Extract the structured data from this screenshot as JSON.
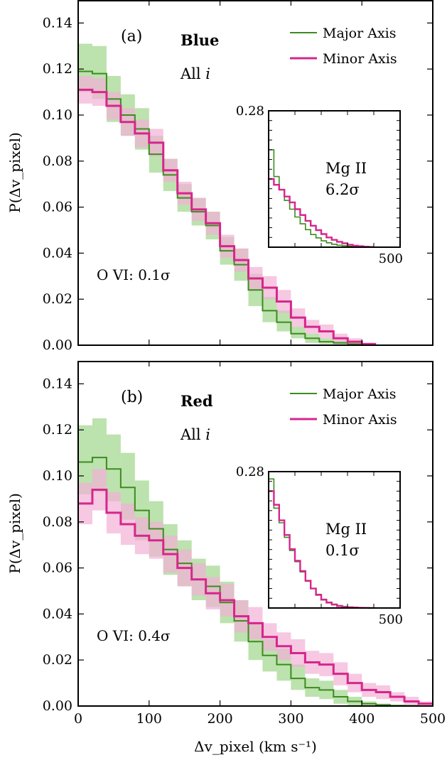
{
  "colors": {
    "major": "#3d8c1f",
    "minor": "#d6268c",
    "major_fill": "#9fd68c",
    "minor_fill": "#f2b0d6"
  },
  "chart_data": [
    {
      "type": "line",
      "step": true,
      "panel_label": "(a)",
      "sample_label": "Blue",
      "incl_label_prefix": "All ",
      "incl_label_var": "i",
      "ion_label": "O VI: 0.1σ",
      "ylabel": "P(Δv_pixel)",
      "xlim": [
        0,
        500
      ],
      "ylim": [
        0,
        0.15
      ],
      "yticks": [
        "0.00",
        "0.02",
        "0.04",
        "0.06",
        "0.08",
        "0.10",
        "0.12",
        "0.14"
      ],
      "x_edges": [
        0,
        20,
        40,
        60,
        80,
        100,
        120,
        140,
        160,
        180,
        200,
        220,
        240,
        260,
        280,
        300,
        320,
        340,
        360,
        380,
        400,
        420
      ],
      "series": [
        {
          "name": "Major Axis",
          "values": [
            0.119,
            0.118,
            0.107,
            0.1,
            0.094,
            0.083,
            0.074,
            0.064,
            0.058,
            0.052,
            0.041,
            0.035,
            0.024,
            0.015,
            0.01,
            0.005,
            0.003,
            0.0015,
            0.001,
            0.0005,
            0.0002
          ],
          "lower": [
            0.11,
            0.107,
            0.097,
            0.091,
            0.085,
            0.075,
            0.067,
            0.058,
            0.052,
            0.046,
            0.035,
            0.028,
            0.017,
            0.01,
            0.006,
            0.003,
            0.001,
            0.0005,
            0.0002,
            0.0,
            0.0
          ],
          "upper": [
            0.131,
            0.13,
            0.117,
            0.109,
            0.103,
            0.091,
            0.081,
            0.07,
            0.064,
            0.058,
            0.047,
            0.042,
            0.031,
            0.021,
            0.015,
            0.008,
            0.005,
            0.003,
            0.002,
            0.001,
            0.0005
          ]
        },
        {
          "name": "Minor Axis",
          "values": [
            0.111,
            0.11,
            0.104,
            0.097,
            0.092,
            0.088,
            0.076,
            0.066,
            0.059,
            0.053,
            0.043,
            0.037,
            0.029,
            0.025,
            0.019,
            0.012,
            0.008,
            0.006,
            0.003,
            0.0015,
            0.0005
          ],
          "lower": [
            0.105,
            0.104,
            0.098,
            0.091,
            0.086,
            0.082,
            0.071,
            0.061,
            0.054,
            0.048,
            0.038,
            0.032,
            0.024,
            0.02,
            0.014,
            0.008,
            0.005,
            0.003,
            0.001,
            0.0005,
            0.0
          ],
          "upper": [
            0.117,
            0.116,
            0.11,
            0.103,
            0.098,
            0.094,
            0.081,
            0.071,
            0.064,
            0.058,
            0.048,
            0.042,
            0.034,
            0.03,
            0.024,
            0.016,
            0.011,
            0.009,
            0.005,
            0.003,
            0.001
          ]
        }
      ],
      "legend": [
        "Major Axis",
        "Minor Axis"
      ],
      "legend_position": "top-right",
      "inset": {
        "ion": "Mg II",
        "sigma": "6.2σ",
        "ymax_label": "0.28",
        "xmax_label": "500",
        "xlim": [
          0,
          500
        ],
        "ylim": [
          0,
          0.28
        ],
        "x_edges": [
          0,
          20,
          40,
          60,
          80,
          100,
          120,
          140,
          160,
          180,
          200,
          220,
          240,
          260,
          280,
          300,
          320,
          340,
          360,
          380,
          400
        ],
        "series": [
          {
            "name": "Major Axis",
            "values": [
              0.2,
              0.145,
              0.118,
              0.096,
              0.078,
              0.062,
              0.048,
              0.036,
              0.026,
              0.019,
              0.013,
              0.009,
              0.006,
              0.004,
              0.003,
              0.002,
              0.001,
              0.0005,
              0.0003,
              0.0001
            ]
          },
          {
            "name": "Minor Axis",
            "values": [
              0.14,
              0.128,
              0.118,
              0.104,
              0.092,
              0.078,
              0.066,
              0.054,
              0.044,
              0.035,
              0.027,
              0.02,
              0.015,
              0.011,
              0.008,
              0.005,
              0.003,
              0.002,
              0.001,
              0.0005
            ]
          }
        ]
      }
    },
    {
      "type": "line",
      "step": true,
      "panel_label": "(b)",
      "sample_label": "Red",
      "incl_label_prefix": "All ",
      "incl_label_var": "i",
      "ion_label": "O VI: 0.4σ",
      "xlabel": "Δv_pixel (km s⁻¹)",
      "ylabel": "P(Δv_pixel)",
      "xlim": [
        0,
        500
      ],
      "ylim": [
        0,
        0.15
      ],
      "xticks": [
        "0",
        "100",
        "200",
        "300",
        "400",
        "500"
      ],
      "yticks": [
        "0.00",
        "0.02",
        "0.04",
        "0.06",
        "0.08",
        "0.10",
        "0.12",
        "0.14"
      ],
      "x_edges": [
        0,
        20,
        40,
        60,
        80,
        100,
        120,
        140,
        160,
        180,
        200,
        220,
        240,
        260,
        280,
        300,
        320,
        340,
        360,
        380,
        400,
        420,
        440,
        460,
        480,
        500
      ],
      "series": [
        {
          "name": "Major Axis",
          "values": [
            0.106,
            0.108,
            0.103,
            0.095,
            0.085,
            0.077,
            0.068,
            0.062,
            0.055,
            0.052,
            0.045,
            0.037,
            0.028,
            0.022,
            0.018,
            0.012,
            0.008,
            0.007,
            0.004,
            0.002,
            0.001,
            0.0005,
            0.0002,
            0.0001,
            0.0
          ],
          "lower": [
            0.092,
            0.093,
            0.089,
            0.081,
            0.072,
            0.065,
            0.057,
            0.052,
            0.046,
            0.043,
            0.036,
            0.028,
            0.02,
            0.015,
            0.011,
            0.007,
            0.004,
            0.003,
            0.001,
            0.0,
            0.0,
            0.0,
            0.0,
            0.0,
            0.0
          ],
          "upper": [
            0.122,
            0.125,
            0.118,
            0.11,
            0.098,
            0.089,
            0.079,
            0.072,
            0.064,
            0.061,
            0.054,
            0.046,
            0.036,
            0.029,
            0.025,
            0.018,
            0.012,
            0.011,
            0.007,
            0.004,
            0.002,
            0.001,
            0.0005,
            0.0002,
            0.0001
          ]
        },
        {
          "name": "Minor Axis",
          "values": [
            0.088,
            0.094,
            0.084,
            0.079,
            0.074,
            0.072,
            0.066,
            0.06,
            0.055,
            0.049,
            0.046,
            0.039,
            0.036,
            0.03,
            0.026,
            0.023,
            0.019,
            0.018,
            0.014,
            0.01,
            0.007,
            0.006,
            0.004,
            0.002,
            0.001
          ],
          "lower": [
            0.079,
            0.085,
            0.075,
            0.07,
            0.066,
            0.064,
            0.058,
            0.052,
            0.048,
            0.042,
            0.039,
            0.032,
            0.029,
            0.024,
            0.02,
            0.017,
            0.014,
            0.013,
            0.009,
            0.006,
            0.004,
            0.003,
            0.002,
            0.0005,
            0.0
          ],
          "upper": [
            0.097,
            0.103,
            0.093,
            0.088,
            0.082,
            0.08,
            0.074,
            0.068,
            0.062,
            0.056,
            0.053,
            0.046,
            0.043,
            0.036,
            0.032,
            0.029,
            0.024,
            0.023,
            0.019,
            0.014,
            0.01,
            0.009,
            0.006,
            0.004,
            0.002
          ]
        }
      ],
      "legend": [
        "Major Axis",
        "Minor Axis"
      ],
      "legend_position": "top-right",
      "inset": {
        "ion": "Mg II",
        "sigma": "0.1σ",
        "ymax_label": "0.28",
        "xmax_label": "500",
        "xlim": [
          0,
          500
        ],
        "ylim": [
          0,
          0.28
        ],
        "x_edges": [
          0,
          20,
          40,
          60,
          80,
          100,
          120,
          140,
          160,
          180,
          200,
          220,
          240,
          260,
          280,
          300,
          320,
          340,
          360,
          380,
          400
        ],
        "series": [
          {
            "name": "Major Axis",
            "values": [
              0.265,
              0.205,
              0.175,
              0.145,
              0.118,
              0.095,
              0.074,
              0.055,
              0.04,
              0.028,
              0.018,
              0.012,
              0.008,
              0.005,
              0.003,
              0.002,
              0.001,
              0.0006,
              0.0003,
              0.0001
            ]
          },
          {
            "name": "Minor Axis",
            "values": [
              0.24,
              0.212,
              0.18,
              0.15,
              0.121,
              0.097,
              0.076,
              0.056,
              0.04,
              0.027,
              0.017,
              0.011,
              0.007,
              0.004,
              0.002,
              0.0015,
              0.001,
              0.0005,
              0.0002,
              0.0001
            ]
          }
        ]
      }
    }
  ]
}
